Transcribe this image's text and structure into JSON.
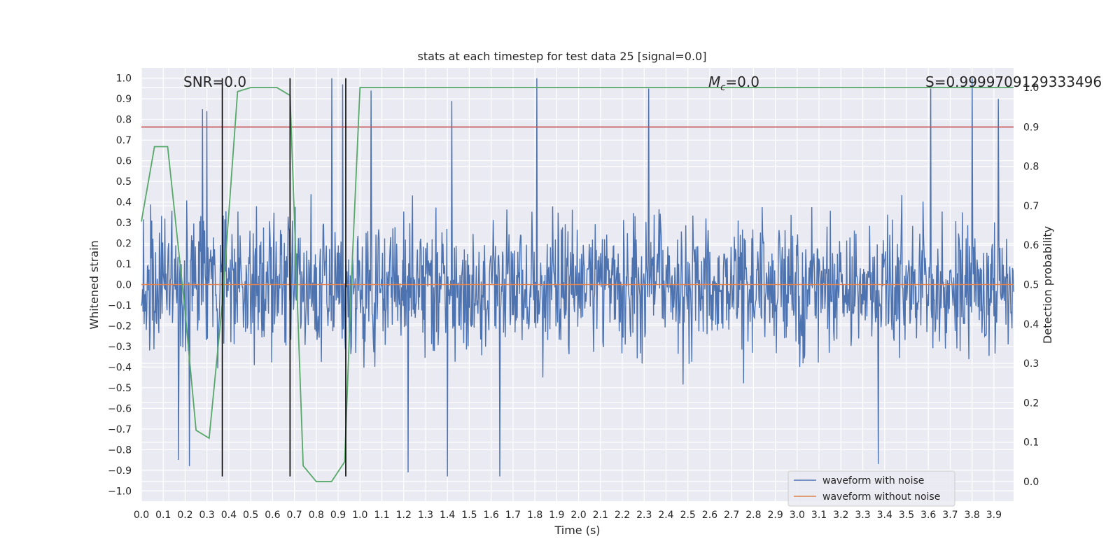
{
  "chart_data": {
    "type": "line",
    "title": "stats at each timestep for test data 25 [signal=0.0]",
    "xlabel": "Time (s)",
    "ylabel": "Whitened strain",
    "y2label": "Detection probability",
    "xlim": [
      0.0,
      3.99
    ],
    "ylim": [
      -1.05,
      1.05
    ],
    "y2lim": [
      -0.05,
      1.05
    ],
    "x_ticks": [
      0.0,
      0.1,
      0.2,
      0.3,
      0.4,
      0.5,
      0.6,
      0.7,
      0.8,
      0.9,
      1.0,
      1.1,
      1.2,
      1.3,
      1.4,
      1.5,
      1.6,
      1.7,
      1.8,
      1.9,
      2.0,
      2.1,
      2.2,
      2.3,
      2.4,
      2.5,
      2.6,
      2.7,
      2.8,
      2.9,
      3.0,
      3.1,
      3.2,
      3.3,
      3.4,
      3.5,
      3.6,
      3.7,
      3.8,
      3.9
    ],
    "x_tick_labels": [
      "0.0",
      "0.1",
      "0.2",
      "0.3",
      "0.4",
      "0.5",
      "0.6",
      "0.7",
      "0.8",
      "0.9",
      "1.0",
      "1.1",
      "1.2",
      "1.3",
      "1.4",
      "1.5",
      "1.6",
      "1.7",
      "1.8",
      "1.9",
      "2.0",
      "2.1",
      "2.2",
      "2.3",
      "2.4",
      "2.5",
      "2.6",
      "2.7",
      "2.8",
      "2.9",
      "3.0",
      "3.1",
      "3.2",
      "3.3",
      "3.4",
      "3.5",
      "3.6",
      "3.7",
      "3.8",
      "3.9"
    ],
    "y_ticks": [
      1.0,
      0.9,
      0.8,
      0.7,
      0.6,
      0.5,
      0.4,
      0.3,
      0.2,
      0.1,
      0.0,
      -0.1,
      -0.2,
      -0.3,
      -0.4,
      -0.5,
      -0.6,
      -0.7,
      -0.8,
      -0.9,
      -1.0
    ],
    "y_tick_labels": [
      "1.0",
      "0.9",
      "0.8",
      "0.7",
      "0.6",
      "0.5",
      "0.4",
      "0.3",
      "0.2",
      "0.1",
      "0.0",
      "−0.1",
      "−0.2",
      "−0.3",
      "−0.4",
      "−0.5",
      "−0.6",
      "−0.7",
      "−0.8",
      "−0.9",
      "−1.0"
    ],
    "y2_ticks": [
      1.0,
      0.9,
      0.8,
      0.7,
      0.6,
      0.5,
      0.4,
      0.3,
      0.2,
      0.1,
      0.0
    ],
    "y2_tick_labels": [
      "1.0",
      "0.9",
      "0.8",
      "0.7",
      "0.6",
      "0.5",
      "0.4",
      "0.3",
      "0.2",
      "0.1",
      "0.0"
    ],
    "series": [
      {
        "name": "waveform with noise",
        "color": "#4c72b0",
        "kind": "noise",
        "samples": 1600,
        "seed": 25,
        "spikes": [
          [
            0.28,
            0.85
          ],
          [
            0.3,
            0.84
          ],
          [
            0.87,
            1.0
          ],
          [
            0.92,
            0.97
          ],
          [
            1.05,
            0.94
          ],
          [
            1.42,
            0.89
          ],
          [
            1.81,
            1.0
          ],
          [
            2.32,
            0.95
          ],
          [
            3.61,
            0.95
          ],
          [
            3.8,
            1.0
          ],
          [
            3.92,
            0.9
          ],
          [
            0.17,
            -0.85
          ],
          [
            1.64,
            -0.93
          ],
          [
            1.4,
            -0.93
          ],
          [
            1.22,
            -0.91
          ],
          [
            3.37,
            -0.87
          ],
          [
            0.22,
            -0.88
          ]
        ]
      },
      {
        "name": "waveform without noise",
        "color": "#dd8452",
        "x": [
          0.0,
          3.99
        ],
        "values": [
          0.0,
          0.0
        ]
      },
      {
        "name": "detection probability",
        "color": "#55a868",
        "axis": "right",
        "x": [
          0.0,
          0.06,
          0.12,
          0.2,
          0.25,
          0.31,
          0.37,
          0.44,
          0.5,
          0.62,
          0.68,
          0.74,
          0.8,
          0.87,
          0.93,
          0.96,
          1.0,
          3.99
        ],
        "values": [
          0.66,
          0.85,
          0.85,
          0.43,
          0.13,
          0.11,
          0.45,
          0.99,
          1.0,
          1.0,
          0.98,
          0.04,
          0.0,
          0.0,
          0.05,
          0.5,
          1.0,
          1.0
        ]
      },
      {
        "name": "threshold",
        "color": "#c44e52",
        "axis": "right",
        "x": [
          0.0,
          3.99
        ],
        "values": [
          0.9,
          0.9
        ]
      }
    ],
    "vlines": [
      0.37,
      0.68,
      0.935
    ],
    "vline_color": "#000000",
    "annotations": {
      "snr": "SNR=0.0",
      "mc_symbol": "M",
      "mc_sub": "c",
      "mc_value": "=0.0",
      "s": "S=0.9999709129333496"
    },
    "legend": {
      "placement": "lower-right",
      "entries": [
        "waveform with noise",
        "waveform without noise"
      ]
    }
  }
}
